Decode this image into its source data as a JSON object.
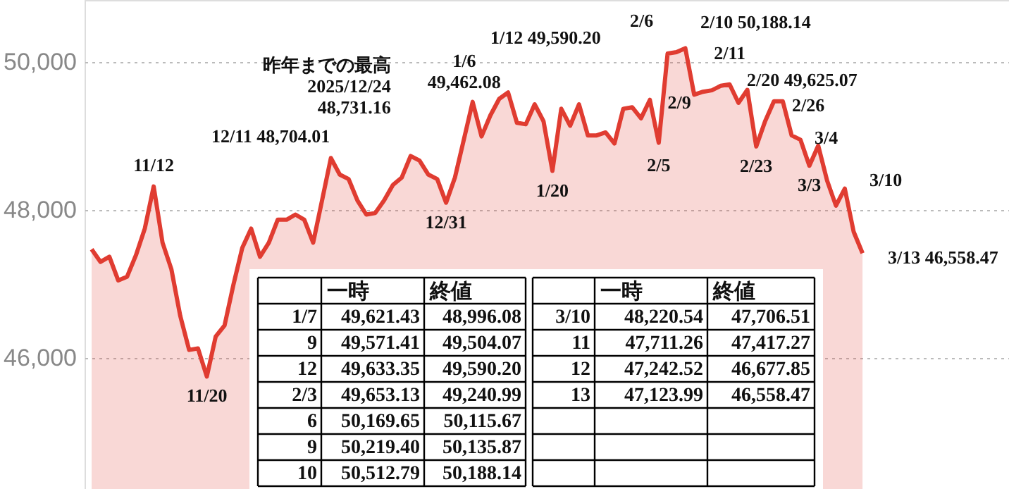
{
  "chart_data": {
    "type": "line",
    "categories": [
      null,
      null,
      null,
      null,
      null,
      null,
      null,
      null,
      null,
      null,
      null,
      null,
      null,
      null,
      null,
      null,
      null,
      null,
      null,
      null,
      null,
      null,
      null,
      null,
      null,
      null,
      null,
      null,
      null,
      null,
      null,
      null,
      null,
      null,
      null,
      null,
      null,
      null,
      null,
      null,
      null,
      null,
      null,
      null,
      null,
      null,
      null,
      null,
      null,
      null,
      null,
      null,
      null,
      null,
      null,
      null,
      null,
      null,
      null,
      null,
      null,
      null,
      null,
      null,
      null,
      null,
      null,
      null,
      null,
      null,
      null,
      null,
      null,
      null,
      null,
      null,
      null,
      null,
      null,
      null,
      null,
      null,
      null,
      null,
      null,
      null,
      null,
      null
    ],
    "series": [
      {
        "color": "#e03c31",
        "values": [
          47470,
          47300,
          47370,
          47050,
          47100,
          47390,
          47750,
          48320,
          47560,
          47200,
          46570,
          46110,
          46130,
          45750,
          46290,
          46440,
          46990,
          47490,
          47750,
          47370,
          47560,
          47870,
          47870,
          47940,
          47870,
          47560,
          48130,
          48704.01,
          48480,
          48420,
          48130,
          47940,
          47960,
          48130,
          48340,
          48440,
          48731.16,
          48670,
          48480,
          48420,
          48100,
          48440,
          48950,
          49462.08,
          48996.08,
          49280,
          49504.07,
          49590.2,
          49180,
          49160,
          49430,
          49200,
          48530,
          49370,
          49140,
          49430,
          49010,
          49010,
          49050,
          48900,
          49370,
          49390,
          49240.99,
          49490,
          48910,
          50115.67,
          50135.87,
          50188.14,
          49560,
          49600,
          49620,
          49680,
          49700,
          49450,
          49625.07,
          48860,
          49200,
          49470,
          49470,
          49010,
          48950,
          48600,
          48870,
          48400,
          48060,
          48290,
          47706.51,
          47417.27
        ]
      }
    ],
    "ylim": [
      44230,
      50840
    ],
    "yticks": [
      {
        "value": 46000,
        "label": "46,000"
      },
      {
        "value": 48000,
        "label": "48,000"
      },
      {
        "value": 50000,
        "label": "50,000"
      }
    ],
    "grid": "y",
    "tick_labels": "y",
    "annotations": [
      {
        "text": "11/12",
        "y": 48320
      },
      {
        "text": "11/20",
        "y": 45750
      },
      {
        "text": "昨年までの最高\n2025/12/24\n48,731.16",
        "y": 48731.16
      },
      {
        "text": "12/31",
        "y": 48100
      },
      {
        "text": "1/6\n49,462.08",
        "y": 49462.08
      },
      {
        "text": "1/20",
        "y": 48530
      },
      {
        "text": "2/5",
        "y": 48910
      },
      {
        "text": "2/9",
        "y": 50135.87
      },
      {
        "text": "2/11",
        "y": 49560
      },
      {
        "text": "2/23",
        "y": 48860
      },
      {
        "text": "3/3",
        "y": 48600
      },
      "12/11 48,704.01",
      "1/12 49,590.20",
      "2/6",
      "2/10 50,188.14",
      "2/20 49,625.07",
      "2/26",
      "3/4",
      "3/10",
      "3/13 46,558.47",
      "一時",
      "終値",
      "1/7",
      "49,621.43",
      "48,996.08",
      "9",
      "49,571.41",
      "49,504.07",
      "12",
      "49,633.35",
      "49,590.20",
      "2/3",
      "49,653.13",
      "49,240.99",
      "6",
      "50,169.65",
      "50,115.67",
      "9",
      "50,219.40",
      "50,135.87",
      "10",
      "50,512.79",
      "50,188.14",
      "一時",
      "終値",
      "3/10",
      "48,220.54",
      "47,706.51",
      "11",
      "47,711.26",
      "47,417.27",
      "12",
      "47,242.52",
      "46,677.85",
      "13",
      "47,123.99",
      "46,558.47"
    ]
  }
}
